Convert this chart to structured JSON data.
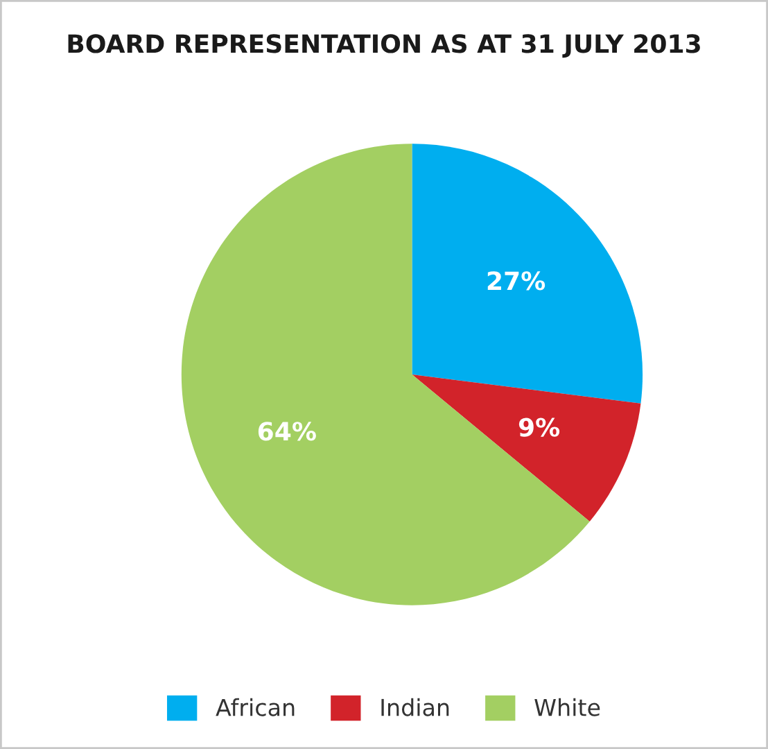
{
  "chart_data": {
    "type": "pie",
    "title": "BOARD REPRESENTATION AS AT 31 JULY 2013",
    "categories": [
      "African",
      "Indian",
      "White"
    ],
    "values": [
      27,
      9,
      64
    ],
    "colors": [
      "#00aeef",
      "#d2232a",
      "#a3cf62"
    ],
    "value_labels": [
      "27%",
      "9%",
      "64%"
    ],
    "legend": "bottom"
  }
}
